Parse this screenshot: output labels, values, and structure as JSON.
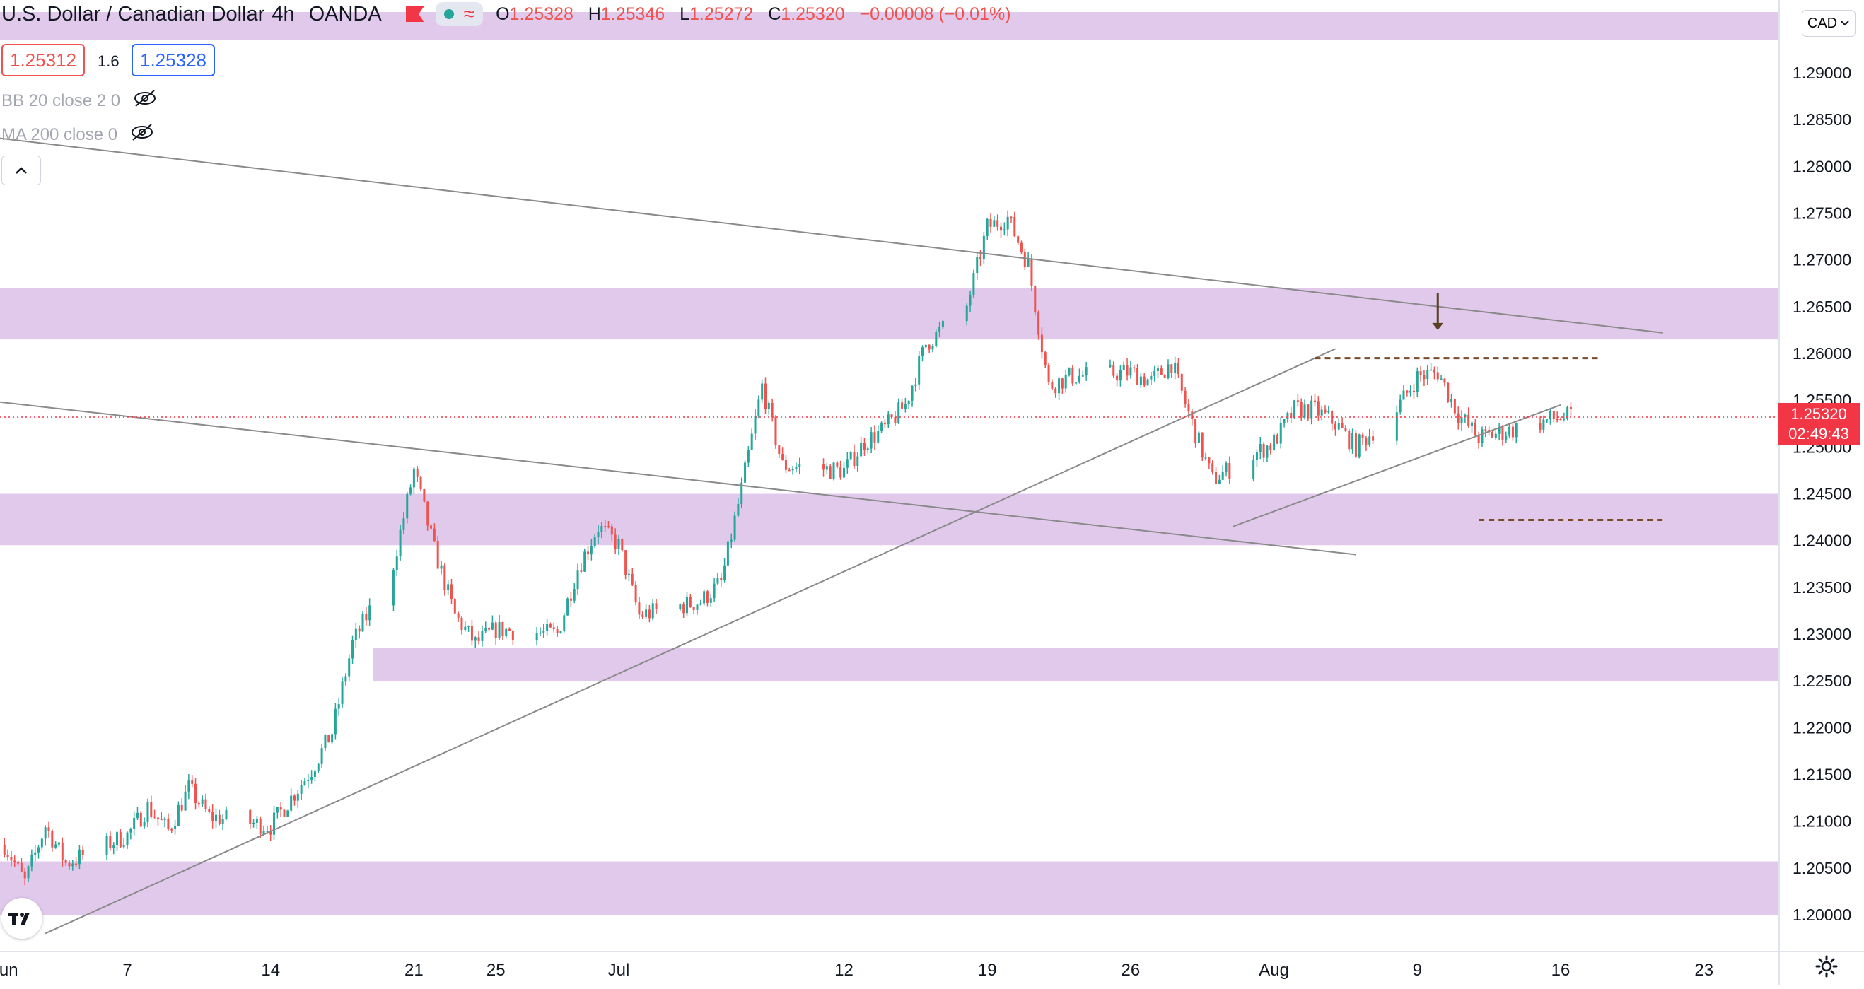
{
  "header": {
    "symbol": "U.S. Dollar / Canadian Dollar",
    "interval": "4h",
    "exchange": "OANDA",
    "open_label": "O",
    "open": "1.25328",
    "high_label": "H",
    "high": "1.25346",
    "low_label": "L",
    "low": "1.25272",
    "close_label": "C",
    "close": "1.25320",
    "change": "−0.00008 (−0.01%)"
  },
  "trade": {
    "sell": "1.25312",
    "spread": "1.6",
    "buy": "1.25328"
  },
  "indicators": [
    {
      "label": "BB 20 close 2 0"
    },
    {
      "label": "MA 200 close 0"
    }
  ],
  "currency_button": "CAD",
  "last_price": {
    "price": "1.25320",
    "countdown": "02:49:43"
  },
  "colors": {
    "up": "#26a69a",
    "down": "#ef5350",
    "zone": "#e1c9ec",
    "trendline": "#8a8a8a",
    "dashed": "#7a4a2a",
    "last_line": "#f23645"
  },
  "chart_data": {
    "type": "candlestick",
    "title": "",
    "ylim": [
      1.1965,
      1.3005
    ],
    "y_ticks": [
      1.2,
      1.205,
      1.21,
      1.215,
      1.22,
      1.225,
      1.23,
      1.235,
      1.24,
      1.245,
      1.25,
      1.255,
      1.26,
      1.265,
      1.27,
      1.275,
      1.28,
      1.285,
      1.29
    ],
    "y_tick_labels": [
      "1.20000",
      "1.20500",
      "1.21000",
      "1.21500",
      "1.22000",
      "1.22500",
      "1.23000",
      "1.23500",
      "1.24000",
      "1.24500",
      "1.25000",
      "1.25500",
      "1.26000",
      "1.26500",
      "1.27000",
      "1.27500",
      "1.28000",
      "1.28500",
      "1.29000"
    ],
    "x_labels": [
      {
        "label": "Jun",
        "date": "2021-06-01"
      },
      {
        "label": "7",
        "date": "2021-06-07"
      },
      {
        "label": "14",
        "date": "2021-06-14"
      },
      {
        "label": "21",
        "date": "2021-06-21"
      },
      {
        "label": "25",
        "date": "2021-06-25"
      },
      {
        "label": "Jul",
        "date": "2021-07-01"
      },
      {
        "label": "12",
        "date": "2021-07-12"
      },
      {
        "label": "19",
        "date": "2021-07-19"
      },
      {
        "label": "26",
        "date": "2021-07-26"
      },
      {
        "label": "Aug",
        "date": "2021-08-02"
      },
      {
        "label": "9",
        "date": "2021-08-09"
      },
      {
        "label": "16",
        "date": "2021-08-16"
      },
      {
        "label": "23",
        "date": "2021-08-23"
      }
    ],
    "close_path": [
      [
        "2021-06-01",
        1.2075
      ],
      [
        "2021-06-02",
        1.2035
      ],
      [
        "2021-06-03",
        1.2095
      ],
      [
        "2021-06-04",
        1.2055
      ],
      [
        "2021-06-07",
        1.2085
      ],
      [
        "2021-06-08",
        1.2115
      ],
      [
        "2021-06-09",
        1.209
      ],
      [
        "2021-06-10",
        1.2135
      ],
      [
        "2021-06-11",
        1.2105
      ],
      [
        "2021-06-14",
        1.2095
      ],
      [
        "2021-06-15",
        1.2125
      ],
      [
        "2021-06-16",
        1.2155
      ],
      [
        "2021-06-17",
        1.2195
      ],
      [
        "2021-06-18",
        1.229
      ],
      [
        "2021-06-20",
        1.2375
      ],
      [
        "2021-06-21",
        1.2475
      ],
      [
        "2021-06-22",
        1.239
      ],
      [
        "2021-06-23",
        1.232
      ],
      [
        "2021-06-24",
        1.229
      ],
      [
        "2021-06-25",
        1.2305
      ],
      [
        "2021-06-28",
        1.23
      ],
      [
        "2021-06-29",
        1.237
      ],
      [
        "2021-06-30",
        1.2415
      ],
      [
        "2021-07-01",
        1.2395
      ],
      [
        "2021-07-02",
        1.232
      ],
      [
        "2021-07-05",
        1.2335
      ],
      [
        "2021-07-06",
        1.2355
      ],
      [
        "2021-07-07",
        1.2455
      ],
      [
        "2021-07-08",
        1.2565
      ],
      [
        "2021-07-09",
        1.248
      ],
      [
        "2021-07-12",
        1.2475
      ],
      [
        "2021-07-13",
        1.2505
      ],
      [
        "2021-07-14",
        1.252
      ],
      [
        "2021-07-15",
        1.2545
      ],
      [
        "2021-07-16",
        1.261
      ],
      [
        "2021-07-18",
        1.265
      ],
      [
        "2021-07-19",
        1.2735
      ],
      [
        "2021-07-20",
        1.2745
      ],
      [
        "2021-07-21",
        1.2695
      ],
      [
        "2021-07-22",
        1.2565
      ],
      [
        "2021-07-23",
        1.2575
      ],
      [
        "2021-07-26",
        1.258
      ],
      [
        "2021-07-27",
        1.257
      ],
      [
        "2021-07-28",
        1.259
      ],
      [
        "2021-07-29",
        1.2525
      ],
      [
        "2021-07-30",
        1.2465
      ],
      [
        "2021-08-02",
        1.2505
      ],
      [
        "2021-08-03",
        1.254
      ],
      [
        "2021-08-04",
        1.254
      ],
      [
        "2021-08-05",
        1.2525
      ],
      [
        "2021-08-06",
        1.25
      ],
      [
        "2021-08-08",
        1.254
      ],
      [
        "2021-08-09",
        1.2575
      ],
      [
        "2021-08-10",
        1.258
      ],
      [
        "2021-08-11",
        1.2535
      ],
      [
        "2021-08-12",
        1.251
      ],
      [
        "2021-08-13",
        1.2515
      ],
      [
        "2021-08-16",
        1.2532
      ]
    ],
    "last_price": 1.2532,
    "zones": [
      {
        "from": 1.2935,
        "to": 1.2965
      },
      {
        "from": 1.2615,
        "to": 1.267
      },
      {
        "from": 1.2395,
        "to": 1.245
      },
      {
        "from": 1.225,
        "to": 1.2285,
        "start": "2021-06-19"
      },
      {
        "from": 1.2,
        "to": 1.2057
      }
    ],
    "trendlines": [
      {
        "from": [
          "2021-05-31",
          1.2832
        ],
        "to": [
          "2021-08-21",
          1.2622
        ]
      },
      {
        "from": [
          "2021-05-31",
          1.255
        ],
        "to": [
          "2021-08-06",
          1.2385
        ]
      },
      {
        "from": [
          "2021-06-03",
          1.198
        ],
        "to": [
          "2021-08-05",
          1.2605
        ]
      },
      {
        "from": [
          "2021-07-31",
          1.2415
        ],
        "to": [
          "2021-08-16",
          1.2545
        ]
      }
    ],
    "levels": [
      {
        "price": 1.2595,
        "from": "2021-08-04",
        "to": "2021-08-18",
        "style": "dashed"
      },
      {
        "price": 1.2422,
        "from": "2021-08-12",
        "to": "2021-08-21",
        "style": "dashed"
      }
    ],
    "arrow": {
      "date": "2021-08-10",
      "from": 1.2665,
      "to": 1.2625
    }
  }
}
